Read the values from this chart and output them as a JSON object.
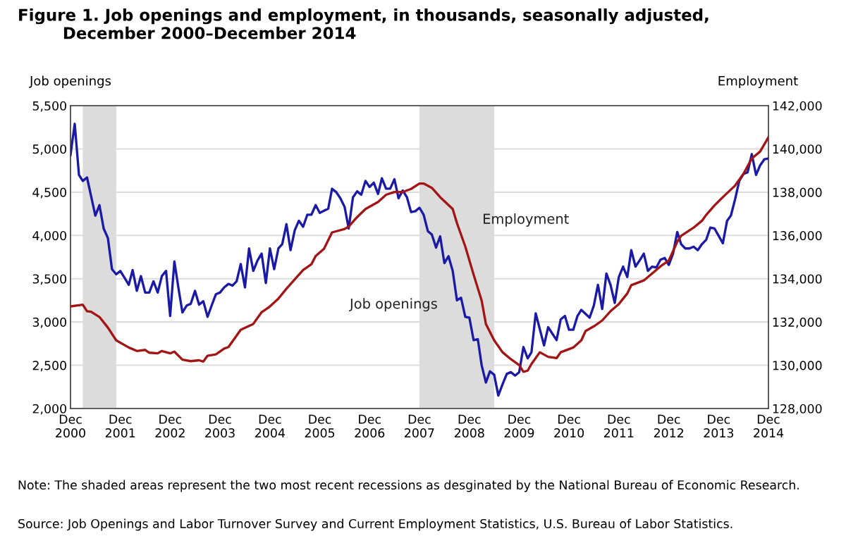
{
  "chart_data": {
    "type": "line",
    "title": "Figure 1. Job openings and employment, in thousands, seasonally adjusted,\n        December 2000–December 2014",
    "ylabel": "Job openings",
    "y2label": "Employment",
    "annotations": [
      "Note: The shaded areas represent the two most recent recessions as desginated by the National Bureau of Economic Research.",
      "Source: Job Openings and Labor Turnover Survey and Current Employment Statistics, U.S. Bureau of Labor Statistics."
    ],
    "series": [
      {
        "name": "Job openings",
        "color": "#1a1aa6",
        "x": [
          "2000-12",
          "2001-01",
          "2001-02",
          "2001-03",
          "2001-04",
          "2001-06",
          "2001-07",
          "2001-08",
          "2001-09",
          "2001-10",
          "2001-11",
          "2001-12",
          "2002-02",
          "2002-03",
          "2002-04",
          "2002-05",
          "2002-06",
          "2002-07",
          "2002-08",
          "2002-09",
          "2002-10",
          "2002-11",
          "2002-12",
          "2003-01",
          "2003-02",
          "2003-03",
          "2003-04",
          "2003-05",
          "2003-06",
          "2003-07",
          "2003-08",
          "2003-09",
          "2003-10",
          "2003-11",
          "2003-12",
          "2004-01",
          "2004-02",
          "2004-03",
          "2004-04",
          "2004-05",
          "2004-06",
          "2004-07",
          "2004-08",
          "2004-09",
          "2004-10",
          "2004-11",
          "2004-12",
          "2005-01",
          "2005-02",
          "2005-03",
          "2005-04",
          "2005-05",
          "2005-06",
          "2005-07",
          "2005-08",
          "2005-09",
          "2005-10",
          "2005-11",
          "2005-12",
          "2006-02",
          "2006-03",
          "2006-04",
          "2006-05",
          "2006-06",
          "2006-07",
          "2006-08",
          "2006-09",
          "2006-10",
          "2006-11",
          "2006-12",
          "2007-01",
          "2007-02",
          "2007-03",
          "2007-04",
          "2007-05",
          "2007-06",
          "2007-07",
          "2007-08",
          "2007-09",
          "2007-10",
          "2007-11",
          "2007-12",
          "2008-01",
          "2008-02",
          "2008-03",
          "2008-04",
          "2008-05",
          "2008-06",
          "2008-07",
          "2008-08",
          "2008-09",
          "2008-10",
          "2008-11",
          "2008-12",
          "2009-01",
          "2009-02",
          "2009-03",
          "2009-04",
          "2009-05",
          "2009-06",
          "2009-07",
          "2009-08",
          "2009-09",
          "2009-10",
          "2009-11",
          "2009-12",
          "2010-01",
          "2010-02",
          "2010-03",
          "2010-04",
          "2010-06",
          "2010-07",
          "2010-09",
          "2010-10",
          "2010-11",
          "2010-12",
          "2011-01",
          "2011-02",
          "2011-03",
          "2011-05",
          "2011-06",
          "2011-07",
          "2011-08",
          "2011-09",
          "2011-10",
          "2011-11",
          "2011-12",
          "2012-01",
          "2012-02",
          "2012-03",
          "2012-04",
          "2012-05",
          "2012-06",
          "2012-07",
          "2012-08",
          "2012-09",
          "2012-10",
          "2012-11",
          "2012-12",
          "2013-01",
          "2013-02",
          "2013-03",
          "2013-04",
          "2013-05",
          "2013-06",
          "2013-07",
          "2013-08",
          "2013-09",
          "2013-10",
          "2013-11",
          "2014-01",
          "2014-02",
          "2014-03",
          "2014-04",
          "2014-05",
          "2014-06",
          "2014-07",
          "2014-08",
          "2014-09",
          "2014-10",
          "2014-11",
          "2014-12"
        ],
        "values": [
          4930,
          5290,
          4700,
          4630,
          4670,
          4230,
          4350,
          4080,
          3970,
          3610,
          3550,
          3590,
          3430,
          3600,
          3360,
          3530,
          3340,
          3340,
          3470,
          3340,
          3530,
          3590,
          3070,
          3700,
          3380,
          3110,
          3190,
          3210,
          3360,
          3200,
          3240,
          3060,
          3190,
          3320,
          3340,
          3400,
          3440,
          3420,
          3470,
          3670,
          3400,
          3850,
          3590,
          3710,
          3790,
          3450,
          3850,
          3610,
          3850,
          3900,
          4130,
          3830,
          4060,
          4170,
          4100,
          4240,
          4240,
          4350,
          4260,
          4310,
          4540,
          4500,
          4430,
          4330,
          4080,
          4440,
          4510,
          4470,
          4630,
          4560,
          4610,
          4480,
          4660,
          4540,
          4540,
          4650,
          4430,
          4520,
          4440,
          4270,
          4280,
          4320,
          4240,
          4050,
          4010,
          3860,
          3990,
          3680,
          3760,
          3590,
          3250,
          3280,
          3060,
          3050,
          2790,
          2800,
          2500,
          2300,
          2430,
          2390,
          2150,
          2280,
          2400,
          2420,
          2380,
          2420,
          2710,
          2580,
          2650,
          3100,
          2730,
          2940,
          2790,
          3030,
          3070,
          2910,
          2910,
          3070,
          3140,
          3050,
          3190,
          3430,
          3150,
          3560,
          3430,
          3220,
          3520,
          3640,
          3520,
          3830,
          3640,
          3710,
          3790,
          3590,
          3640,
          3630,
          3720,
          3740,
          3660,
          3790,
          4040,
          3900,
          3850,
          3850,
          3870,
          3830,
          3900,
          3950,
          4090,
          4080,
          3910,
          4170,
          4230,
          4420,
          4630,
          4710,
          4730,
          4940,
          4700,
          4810,
          4880,
          4890
        ]
      },
      {
        "name": "Employment",
        "color": "#a31515",
        "axis": "y2",
        "x": [
          "2000-12",
          "2001-03",
          "2001-04",
          "2001-05",
          "2001-07",
          "2001-09",
          "2001-11",
          "2002-02",
          "2002-04",
          "2002-06",
          "2002-07",
          "2002-09",
          "2002-10",
          "2002-12",
          "2003-01",
          "2003-03",
          "2003-05",
          "2003-07",
          "2003-08",
          "2003-09",
          "2003-11",
          "2004-01",
          "2004-02",
          "2004-05",
          "2004-07",
          "2004-08",
          "2004-10",
          "2004-12",
          "2005-02",
          "2005-04",
          "2005-06",
          "2005-08",
          "2005-10",
          "2005-11",
          "2006-01",
          "2006-03",
          "2006-06",
          "2006-07",
          "2006-09",
          "2006-11",
          "2007-02",
          "2007-04",
          "2007-06",
          "2007-08",
          "2007-10",
          "2007-12",
          "2008-01",
          "2008-03",
          "2008-05",
          "2008-08",
          "2008-09",
          "2008-11",
          "2009-01",
          "2009-03",
          "2009-04",
          "2009-06",
          "2009-08",
          "2009-10",
          "2009-12",
          "2010-01",
          "2010-02",
          "2010-03",
          "2010-05",
          "2010-07",
          "2010-09",
          "2010-10",
          "2011-01",
          "2011-03",
          "2011-04",
          "2011-06",
          "2011-08",
          "2011-10",
          "2011-12",
          "2012-02",
          "2012-03",
          "2012-06",
          "2012-08",
          "2012-10",
          "2012-12",
          "2013-02",
          "2013-03",
          "2013-06",
          "2013-08",
          "2013-09",
          "2013-11",
          "2014-01",
          "2014-04",
          "2014-06",
          "2014-08",
          "2014-10",
          "2014-12"
        ],
        "values": [
          132720,
          132800,
          132500,
          132470,
          132230,
          131740,
          131150,
          130820,
          130660,
          130710,
          130580,
          130550,
          130660,
          130550,
          130630,
          130260,
          130190,
          130230,
          130170,
          130440,
          130500,
          130770,
          130840,
          131640,
          131820,
          131910,
          132450,
          132720,
          133080,
          133540,
          133970,
          134400,
          134670,
          135050,
          135380,
          136140,
          136300,
          136410,
          136850,
          137220,
          137550,
          137880,
          138010,
          138010,
          138150,
          138400,
          138400,
          138200,
          137770,
          137220,
          136570,
          135490,
          134190,
          132990,
          131910,
          131150,
          130600,
          130280,
          130010,
          129700,
          129750,
          130060,
          130600,
          130390,
          130330,
          130600,
          130820,
          131150,
          131580,
          131800,
          132070,
          132500,
          132830,
          133320,
          133700,
          133920,
          134240,
          134570,
          134840,
          135710,
          135980,
          136360,
          136680,
          136950,
          137390,
          137770,
          138310,
          138850,
          139560,
          139880,
          140540
        ]
      }
    ],
    "xlim": [
      "2000-12",
      "2014-12"
    ],
    "xticks": [
      {
        "value": "2000-12",
        "label": "Dec\n2000"
      },
      {
        "value": "2001-12",
        "label": "Dec\n2001"
      },
      {
        "value": "2002-12",
        "label": "Dec\n2002"
      },
      {
        "value": "2003-12",
        "label": "Dec\n2003"
      },
      {
        "value": "2004-12",
        "label": "Dec\n2004"
      },
      {
        "value": "2005-12",
        "label": "Dec\n2005"
      },
      {
        "value": "2006-12",
        "label": "Dec\n2006"
      },
      {
        "value": "2007-12",
        "label": "Dec\n2007"
      },
      {
        "value": "2008-12",
        "label": "Dec\n2008"
      },
      {
        "value": "2009-12",
        "label": "Dec\n2009"
      },
      {
        "value": "2010-12",
        "label": "Dec\n2010"
      },
      {
        "value": "2011-12",
        "label": "Dec\n2011"
      },
      {
        "value": "2012-12",
        "label": "Dec\n2012"
      },
      {
        "value": "2013-12",
        "label": "Dec\n2013"
      },
      {
        "value": "2014-12",
        "label": "Dec\n2014"
      }
    ],
    "ylim": [
      2000,
      5500
    ],
    "yticks": [
      {
        "value": 2000,
        "label": "2,000"
      },
      {
        "value": 2500,
        "label": "2,500"
      },
      {
        "value": 3000,
        "label": "3,000"
      },
      {
        "value": 3500,
        "label": "3,500"
      },
      {
        "value": 4000,
        "label": "4,000"
      },
      {
        "value": 4500,
        "label": "4,500"
      },
      {
        "value": 5000,
        "label": "5,000"
      },
      {
        "value": 5500,
        "label": "5,500"
      }
    ],
    "y2lim": [
      128000,
      142000
    ],
    "y2ticks": [
      {
        "value": 128000,
        "label": "128,000"
      },
      {
        "value": 130000,
        "label": "130,000"
      },
      {
        "value": 132000,
        "label": "132,000"
      },
      {
        "value": 134000,
        "label": "134,000"
      },
      {
        "value": 136000,
        "label": "136,000"
      },
      {
        "value": 138000,
        "label": "138,000"
      },
      {
        "value": 140000,
        "label": "140,000"
      },
      {
        "value": 142000,
        "label": "142,000"
      }
    ],
    "bands": [
      {
        "axis": "x",
        "from": "2001-03",
        "to": "2001-11",
        "color": "#dcdcdc"
      },
      {
        "axis": "x",
        "from": "2007-12",
        "to": "2009-06",
        "color": "#dcdcdc"
      }
    ],
    "grid": "y",
    "legend": false,
    "marker": "none",
    "line_style": "solid"
  }
}
